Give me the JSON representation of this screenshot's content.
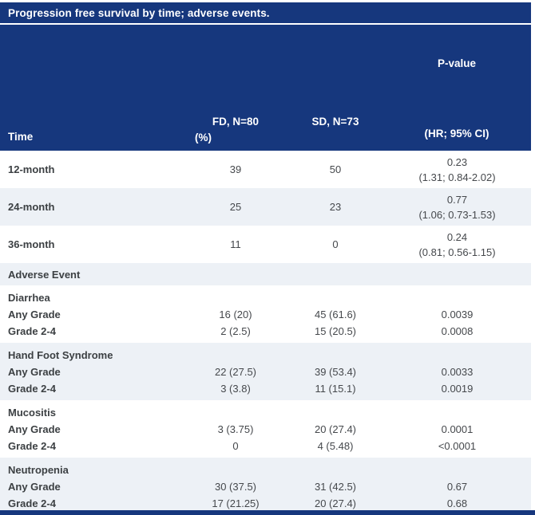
{
  "title": "Progression free survival by time; adverse events.",
  "header": {
    "p_value_label": "P-value",
    "fd_label": "FD, N=80",
    "sd_label": "SD, N=73",
    "time_label": "Time",
    "percent_label": "(%)",
    "hr_ci_label": "(HR; 95% CI)"
  },
  "time_rows": [
    {
      "label": "12-month",
      "fd": "39",
      "sd": "50",
      "p": "0.23",
      "hr_ci": "(1.31; 0.84-2.02)"
    },
    {
      "label": "24-month",
      "fd": "25",
      "sd": "23",
      "p": "0.77",
      "hr_ci": "(1.06; 0.73-1.53)"
    },
    {
      "label": "36-month",
      "fd": "11",
      "sd": "0",
      "p": "0.24",
      "hr_ci": "(0.81; 0.56-1.15)"
    }
  ],
  "adverse_event_label": "Adverse Event",
  "adverse_sections": [
    {
      "name": "Diarrhea",
      "rows": [
        {
          "label": "Any Grade",
          "fd": "16 (20)",
          "sd": "45 (61.6)",
          "p": "0.0039"
        },
        {
          "label": "Grade 2-4",
          "fd": "2 (2.5)",
          "sd": "15 (20.5)",
          "p": "0.0008"
        }
      ]
    },
    {
      "name": "Hand Foot Syndrome",
      "rows": [
        {
          "label": "Any Grade",
          "fd": "22 (27.5)",
          "sd": "39 (53.4)",
          "p": "0.0033"
        },
        {
          "label": "Grade 2-4",
          "fd": "3 (3.8)",
          "sd": "11 (15.1)",
          "p": "0.0019"
        }
      ]
    },
    {
      "name": "Mucositis",
      "rows": [
        {
          "label": "Any Grade",
          "fd": "3 (3.75)",
          "sd": "20 (27.4)",
          "p": "0.0001"
        },
        {
          "label": "Grade 2-4",
          "fd": "0",
          "sd": "4 (5.48)",
          "p": "<0.0001"
        }
      ]
    },
    {
      "name": "Neutropenia",
      "rows": [
        {
          "label": "Any Grade",
          "fd": "30 (37.5)",
          "sd": "31 (42.5)",
          "p": "0.67"
        },
        {
          "label": "Grade 2-4",
          "fd": "17 (21.25)",
          "sd": "20 (27.4)",
          "p": "0.68"
        }
      ]
    }
  ],
  "colors": {
    "header_navy": "#16377d",
    "alt_row": "#edf1f6",
    "label_text": "#3c4043",
    "value_text": "#45484c",
    "header_text": "#ffffff"
  },
  "chart_data": {
    "type": "table",
    "title": "Progression free survival by time; adverse events.",
    "columns": [
      "Time",
      "FD, N=80 (%)",
      "SD, N=73 (%)",
      "P-value (HR; 95% CI)"
    ],
    "rows": [
      [
        "12-month",
        "39",
        "50",
        "0.23 (1.31; 0.84-2.02)"
      ],
      [
        "24-month",
        "25",
        "23",
        "0.77 (1.06; 0.73-1.53)"
      ],
      [
        "36-month",
        "11",
        "0",
        "0.24 (0.81; 0.56-1.15)"
      ],
      [
        "Adverse Event",
        "",
        "",
        ""
      ],
      [
        "Diarrhea — Any Grade",
        "16 (20)",
        "45 (61.6)",
        "0.0039"
      ],
      [
        "Diarrhea — Grade 2-4",
        "2 (2.5)",
        "15 (20.5)",
        "0.0008"
      ],
      [
        "Hand Foot Syndrome — Any Grade",
        "22 (27.5)",
        "39 (53.4)",
        "0.0033"
      ],
      [
        "Hand Foot Syndrome — Grade 2-4",
        "3 (3.8)",
        "11 (15.1)",
        "0.0019"
      ],
      [
        "Mucositis — Any Grade",
        "3 (3.75)",
        "20 (27.4)",
        "0.0001"
      ],
      [
        "Mucositis — Grade 2-4",
        "0",
        "4 (5.48)",
        "<0.0001"
      ],
      [
        "Neutropenia — Any Grade",
        "30 (37.5)",
        "31 (42.5)",
        "0.67"
      ],
      [
        "Neutropenia — Grade 2-4",
        "17 (21.25)",
        "20 (27.4)",
        "0.68"
      ]
    ]
  }
}
